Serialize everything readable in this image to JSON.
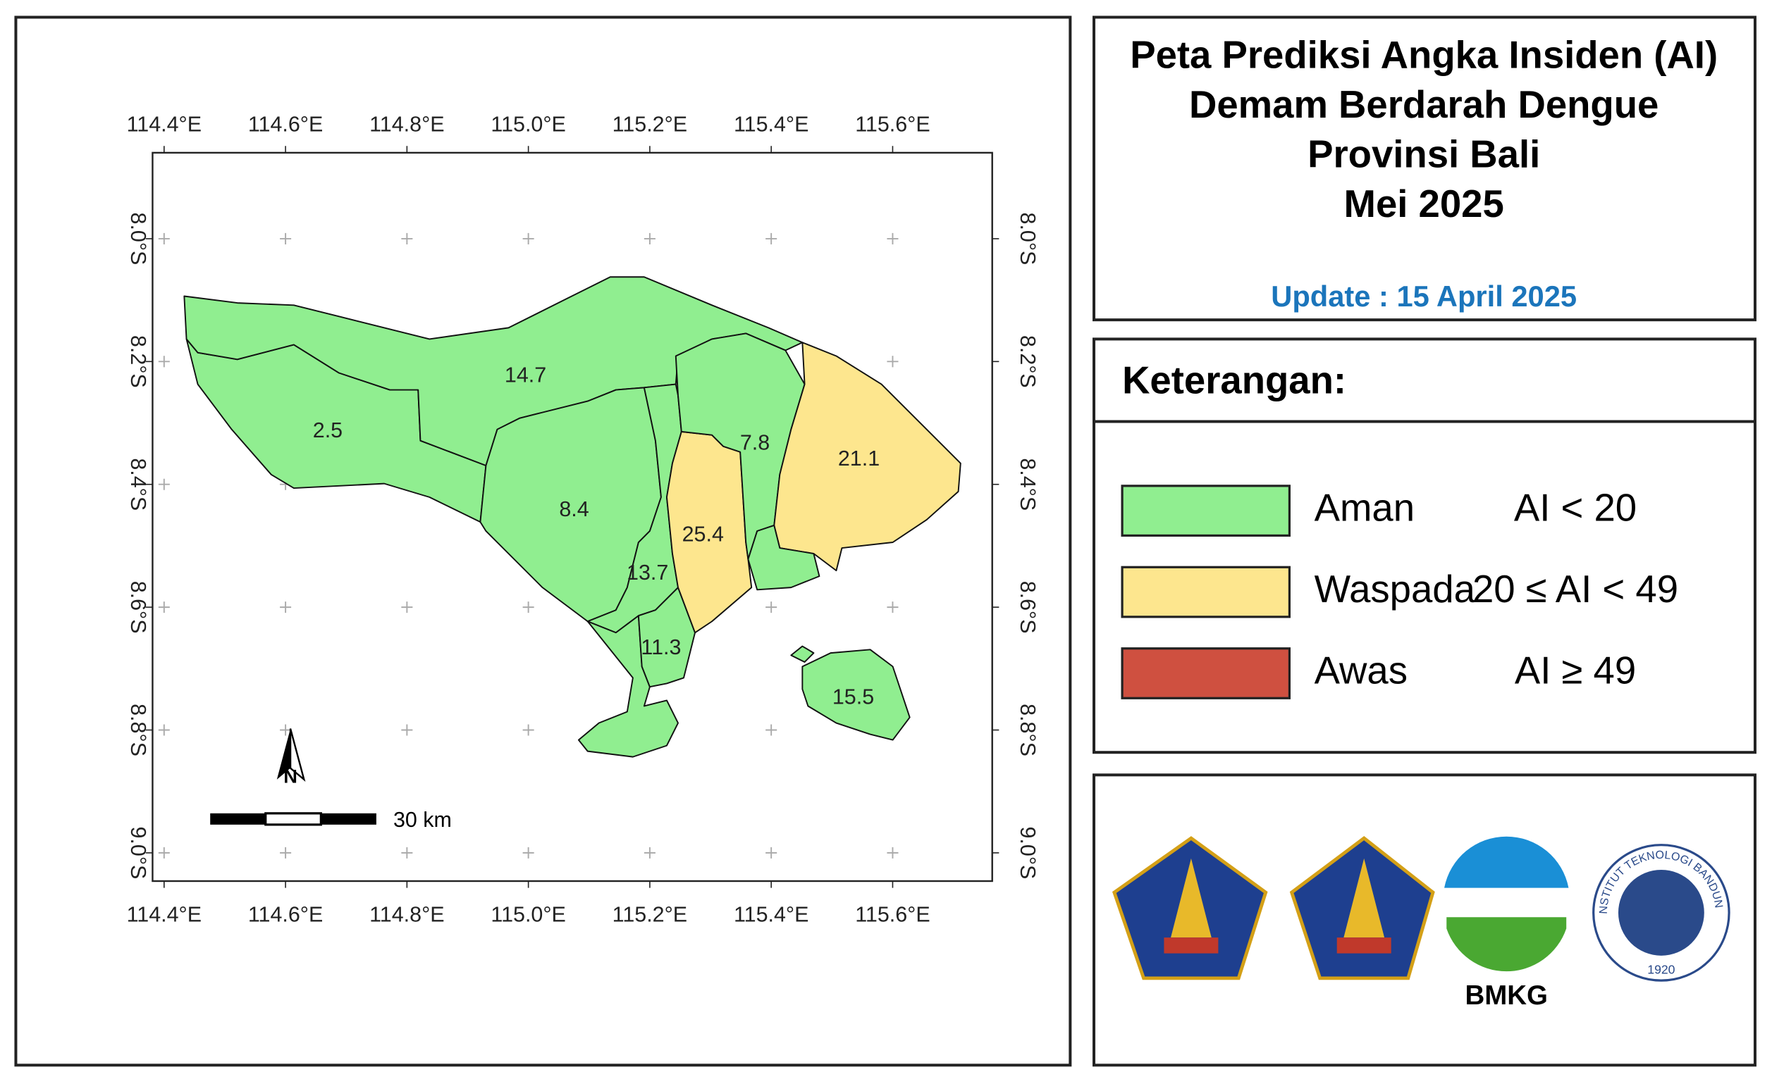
{
  "title": [
    "Peta Prediksi Angka Insiden (AI)",
    "Demam Berdarah Dengue",
    "Provinsi Bali",
    "Mei 2025"
  ],
  "update": "Update : 15 April 2025",
  "map": {
    "xlim": [
      114.381,
      115.764
    ],
    "ylim": [
      7.86,
      9.046
    ],
    "xticks": [
      {
        "value": 114.4,
        "label": "114.4°E"
      },
      {
        "value": 114.6,
        "label": "114.6°E"
      },
      {
        "value": 114.8,
        "label": "114.8°E"
      },
      {
        "value": 115.0,
        "label": "115.0°E"
      },
      {
        "value": 115.2,
        "label": "115.2°E"
      },
      {
        "value": 115.4,
        "label": "115.4°E"
      },
      {
        "value": 115.6,
        "label": "115.6°E"
      }
    ],
    "yticks": [
      {
        "value": 8.0,
        "label": "8.0°S"
      },
      {
        "value": 8.2,
        "label": "8.2°S"
      },
      {
        "value": 8.4,
        "label": "8.4°S"
      },
      {
        "value": 8.6,
        "label": "8.6°S"
      },
      {
        "value": 8.8,
        "label": "8.8°S"
      },
      {
        "value": 9.0,
        "label": "9.0°S"
      }
    ],
    "regions": [
      {
        "value": 2.5,
        "color": "#90ee90"
      },
      {
        "value": 14.7,
        "color": "#90ee90"
      },
      {
        "value": 8.4,
        "color": "#90ee90"
      },
      {
        "value": 13.7,
        "color": "#90ee90"
      },
      {
        "value": 11.3,
        "color": "#90ee90"
      },
      {
        "value": 25.4,
        "color": "#fde68e"
      },
      {
        "value": 7.8,
        "color": "#90ee90"
      },
      {
        "value": 21.1,
        "color": "#fde68e"
      },
      {
        "value": 15.5,
        "color": "#90ee90"
      }
    ],
    "north": "N",
    "scale_label": "30 km"
  },
  "legend": {
    "heading": "Keterangan:",
    "items": [
      {
        "label": "Aman",
        "rule": "AI < 20",
        "color": "#90ee90"
      },
      {
        "label": "Waspada",
        "rule": "20 ≤ AI < 49",
        "color": "#fde68e"
      },
      {
        "label": "Awas",
        "rule": "AI ≥ 49",
        "color": "#cf5040"
      }
    ]
  },
  "logos": {
    "bmkg": "BMKG",
    "itb": "INSTITUT TEKNOLOGI BANDUNG",
    "itb_year": "1920"
  }
}
